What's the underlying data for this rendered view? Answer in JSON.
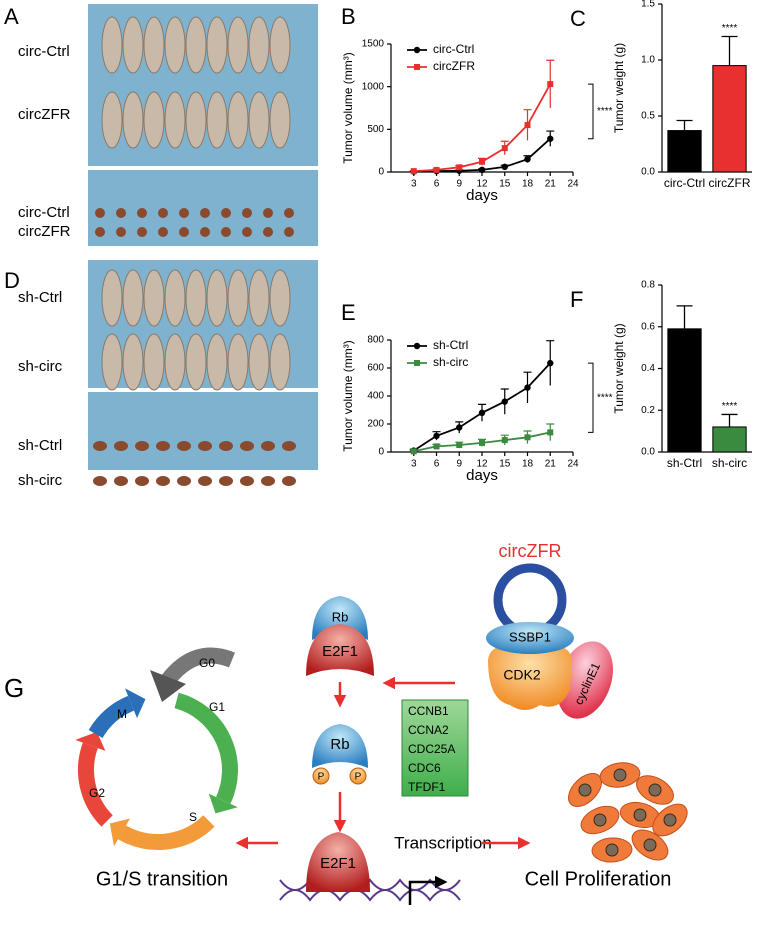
{
  "photo_panels": [
    {
      "label": "A",
      "rows": [
        "circ-Ctrl",
        "circZFR",
        "circ-Ctrl",
        "circZFR"
      ]
    },
    {
      "label": "D",
      "rows": [
        "sh-Ctrl",
        "sh-circ",
        "sh-Ctrl",
        "sh-circ"
      ]
    }
  ],
  "chart_data": [
    {
      "type": "line",
      "panel_label": "B",
      "x_label": "days",
      "y_label": "Tumor volume (mm³)",
      "x": [
        3,
        6,
        9,
        12,
        15,
        18,
        21
      ],
      "xlim": [
        0,
        24
      ],
      "xticks": [
        3,
        6,
        9,
        12,
        15,
        18,
        21,
        24
      ],
      "ylim": [
        0,
        1500
      ],
      "yticks": [
        0,
        500,
        1000,
        1500
      ],
      "annotation": "****",
      "series": [
        {
          "name": "circ-Ctrl",
          "color": "#000000",
          "marker": "circle",
          "values": [
            5,
            10,
            15,
            25,
            60,
            150,
            390
          ],
          "errors": [
            3,
            5,
            8,
            10,
            20,
            40,
            90
          ]
        },
        {
          "name": "circZFR",
          "color": "#e8302e",
          "marker": "square",
          "values": [
            10,
            25,
            55,
            120,
            280,
            550,
            1030
          ],
          "errors": [
            5,
            10,
            20,
            40,
            80,
            180,
            280
          ]
        }
      ]
    },
    {
      "type": "bar",
      "panel_label": "C",
      "y_label": "Tumor weight (g)",
      "categories": [
        "circ-Ctrl",
        "circZFR"
      ],
      "values": [
        0.37,
        0.95
      ],
      "errors": [
        0.09,
        0.26
      ],
      "colors": [
        "#000000",
        "#e8302e"
      ],
      "ylim": [
        0,
        1.5
      ],
      "yticks": [
        {
          "value": 0,
          "label": "0.0"
        },
        0.5,
        {
          "value": 1,
          "label": "1.0"
        },
        1.5
      ],
      "annotation": "****"
    },
    {
      "type": "line",
      "panel_label": "E",
      "x_label": "days",
      "y_label": "Tumor volume (mm³)",
      "x": [
        3,
        6,
        9,
        12,
        15,
        18,
        21
      ],
      "xlim": [
        0,
        24
      ],
      "xticks": [
        3,
        6,
        9,
        12,
        15,
        18,
        21,
        24
      ],
      "ylim": [
        0,
        800
      ],
      "yticks": [
        0,
        200,
        400,
        600,
        800
      ],
      "annotation": "****",
      "series": [
        {
          "name": "sh-Ctrl",
          "color": "#000000",
          "marker": "circle",
          "values": [
            10,
            115,
            175,
            280,
            360,
            460,
            635
          ],
          "errors": [
            10,
            30,
            40,
            60,
            90,
            110,
            160
          ]
        },
        {
          "name": "sh-circ",
          "color": "#3a8a3f",
          "marker": "square",
          "values": [
            5,
            40,
            50,
            65,
            85,
            105,
            140
          ],
          "errors": [
            5,
            15,
            20,
            25,
            35,
            45,
            60
          ]
        }
      ]
    },
    {
      "type": "bar",
      "panel_label": "F",
      "y_label": "Tumor weight (g)",
      "categories": [
        "sh-Ctrl",
        "sh-circ"
      ],
      "values": [
        0.59,
        0.12
      ],
      "errors": [
        0.11,
        0.06
      ],
      "colors": [
        "#000000",
        "#3a8a3f"
      ],
      "ylim": [
        0,
        0.8
      ],
      "yticks": [
        {
          "value": 0,
          "label": "0.0"
        },
        0.2,
        0.4,
        0.6,
        0.8
      ],
      "annotation": "****"
    }
  ],
  "diagram": {
    "label": "G",
    "circ_name": "circZFR",
    "complex": [
      "SSBP1",
      "CDK2",
      "cyclinE1"
    ],
    "rb_e2f1": [
      "Rb",
      "E2F1"
    ],
    "phospho_rb": {
      "rb": "Rb",
      "p1": "P",
      "p2": "P"
    },
    "cycle": {
      "g0": "G0",
      "g1": "G1",
      "s": "S",
      "g2": "G2",
      "m": "M"
    },
    "genes": [
      "CCNB1",
      "CCNA2",
      "CDC25A",
      "CDC6",
      "TFDF1"
    ],
    "bound_e2f1": "E2F1",
    "transcription": "Transcription",
    "g1s": "G1/S transition",
    "proliferation": "Cell Proliferation"
  }
}
